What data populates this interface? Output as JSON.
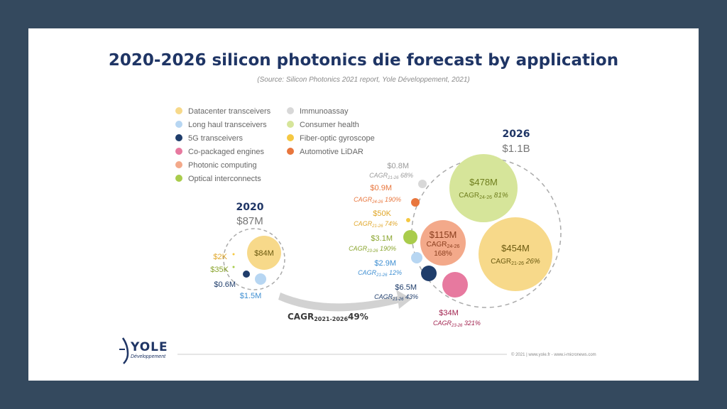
{
  "chart_data": {
    "type": "bubble",
    "title": "2020-2026 silicon photonics die forecast by application",
    "subtitle": "(Source: Silicon Photonics 2021 report, Yole Développement, 2021)",
    "legend": [
      {
        "name": "Datacenter transceivers",
        "color": "#f7d98a"
      },
      {
        "name": "Long haul transceivers",
        "color": "#b7d6f2"
      },
      {
        "name": "5G transceivers",
        "color": "#1f3d6b"
      },
      {
        "name": "Co-packaged engines",
        "color": "#e7799f"
      },
      {
        "name": "Photonic computing",
        "color": "#f3a98a"
      },
      {
        "name": "Optical interconnects",
        "color": "#a9cc4c"
      },
      {
        "name": "Immunoassay",
        "color": "#d8d8d8"
      },
      {
        "name": "Consumer health",
        "color": "#d6e59a"
      },
      {
        "name": "Fiber-optic gyroscope",
        "color": "#f5c842"
      },
      {
        "name": "Automotive LiDAR",
        "color": "#e8763d"
      }
    ],
    "groups": [
      {
        "year": "2020",
        "total": "$87M",
        "items": [
          {
            "value": "$84M",
            "segment": "Datacenter transceivers"
          },
          {
            "value": "$2K",
            "segment": "Fiber-optic gyroscope"
          },
          {
            "value": "$35K",
            "segment": "Optical interconnects"
          },
          {
            "value": "$0.6M",
            "segment": "5G transceivers"
          },
          {
            "value": "$1.5M",
            "segment": "Long haul transceivers"
          }
        ]
      },
      {
        "year": "2026",
        "total": "$1.1B",
        "items": [
          {
            "value": "$478M",
            "cagr": "81%",
            "cagr_label": "CAGR24-26",
            "segment": "Consumer health"
          },
          {
            "value": "$454M",
            "cagr": "26%",
            "cagr_label": "CAGR21-26",
            "segment": "Datacenter transceivers"
          },
          {
            "value": "$115M",
            "cagr": "168%",
            "cagr_label": "CAGR24-26",
            "segment": "Photonic computing"
          },
          {
            "value": "$0.8M",
            "cagr": "68%",
            "cagr_label": "CAGR21-26",
            "segment": "Immunoassay"
          },
          {
            "value": "$0.9M",
            "cagr": "190%",
            "cagr_label": "CAGR24-26",
            "segment": "Automotive LiDAR"
          },
          {
            "value": "$50K",
            "cagr": "74%",
            "cagr_label": "CAGR21-26",
            "segment": "Fiber-optic gyroscope"
          },
          {
            "value": "$3.1M",
            "cagr": "190%",
            "cagr_label": "CAGR23-26",
            "segment": "Optical interconnects"
          },
          {
            "value": "$2.9M",
            "cagr": "12%",
            "cagr_label": "CAGR21-26",
            "segment": "Long haul transceivers"
          },
          {
            "value": "$6.5M",
            "cagr": "43%",
            "cagr_label": "CAGR21-26",
            "segment": "5G transceivers"
          },
          {
            "value": "$34M",
            "cagr": "321%",
            "cagr_label": "CAGR23-26",
            "segment": "Co-packaged engines"
          }
        ]
      }
    ],
    "overall_cagr": {
      "label": "CAGR",
      "sub": "2021-2026",
      "value": "49%"
    }
  },
  "branding": {
    "logo": "YOLE",
    "logo_sub": "Développement",
    "footer": "© 2021 | www.yole.fr - www.i-micronews.com"
  },
  "colors": {
    "background": "#34495e",
    "title": "#1f3565"
  }
}
